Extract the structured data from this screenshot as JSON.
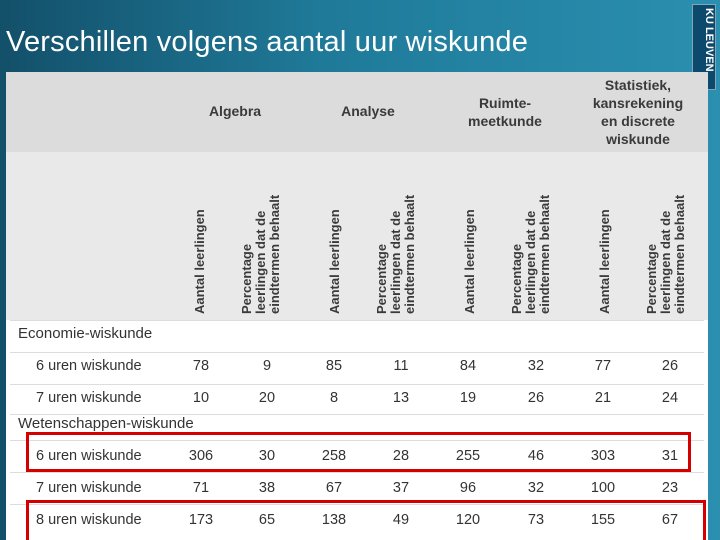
{
  "slide": {
    "title": "Verschillen volgens aantal uur wiskunde",
    "logo_text": "KU LEUVEN"
  },
  "table": {
    "groups": [
      "Algebra",
      "Analyse",
      "Ruimte-\nmeetkunde",
      "Statistiek,\nkansrekening\nen discrete\nwiskunde"
    ],
    "sub_headers": [
      "Aantal leerlingen",
      "Percentage\nleerlingen dat de\neindtermen behaalt"
    ],
    "sections": [
      {
        "name": "Economie-wiskunde",
        "rows": [
          {
            "label": "6 uren wiskunde",
            "values": [
              "78",
              "9",
              "85",
              "11",
              "84",
              "32",
              "77",
              "26"
            ]
          },
          {
            "label": "7 uren wiskunde",
            "values": [
              "10",
              "20",
              "8",
              "13",
              "19",
              "26",
              "21",
              "24"
            ]
          }
        ]
      },
      {
        "name": "Wetenschappen-wiskunde",
        "rows": [
          {
            "label": "6 uren wiskunde",
            "values": [
              "306",
              "30",
              "258",
              "28",
              "255",
              "46",
              "303",
              "31"
            ]
          },
          {
            "label": "7 uren wiskunde",
            "values": [
              "71",
              "38",
              "67",
              "37",
              "96",
              "32",
              "100",
              "23"
            ]
          },
          {
            "label": "8 uren wiskunde",
            "values": [
              "173",
              "65",
              "138",
              "49",
              "120",
              "73",
              "155",
              "67"
            ]
          }
        ]
      }
    ],
    "highlight_color": "#d40000"
  }
}
